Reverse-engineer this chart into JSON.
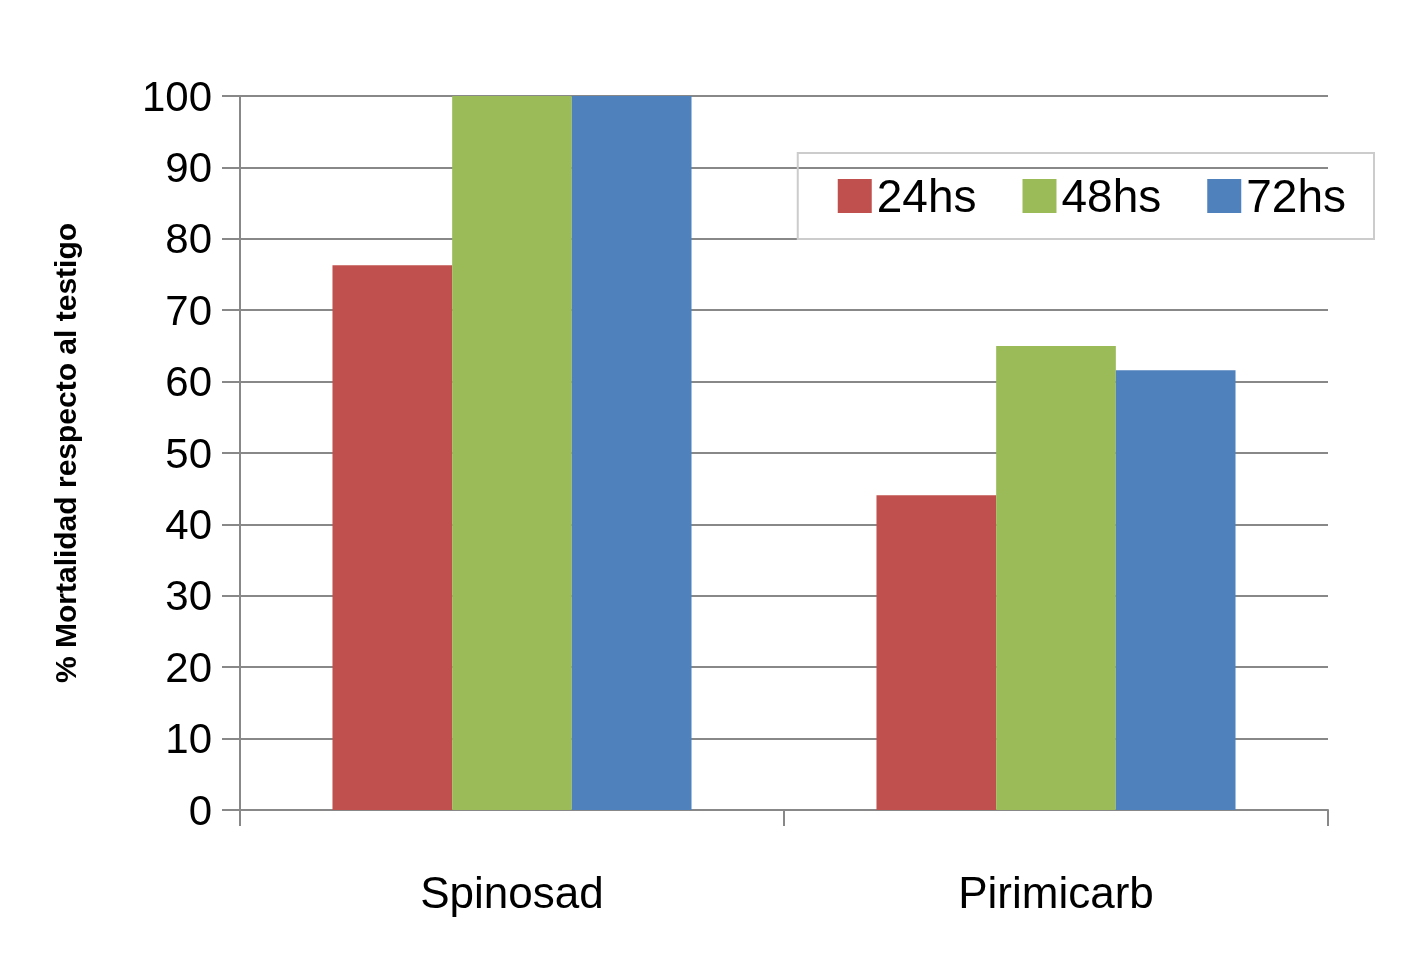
{
  "chart_data": {
    "type": "bar",
    "ylabel": "% Mortalidad respecto al testigo",
    "categories": [
      "Spinosad",
      "Pirimicarb"
    ],
    "series": [
      {
        "name": "24hs",
        "color": "#c0504d",
        "values": [
          76.3,
          44.1
        ]
      },
      {
        "name": "48hs",
        "color": "#9bbb59",
        "values": [
          100,
          65.0
        ]
      },
      {
        "name": "72hs",
        "color": "#4f81bd",
        "values": [
          100,
          61.6
        ]
      }
    ],
    "ylim": [
      0,
      100
    ],
    "yticks": [
      0,
      10,
      20,
      30,
      40,
      50,
      60,
      70,
      80,
      90,
      100
    ],
    "grid": "y",
    "legend": "top right"
  }
}
